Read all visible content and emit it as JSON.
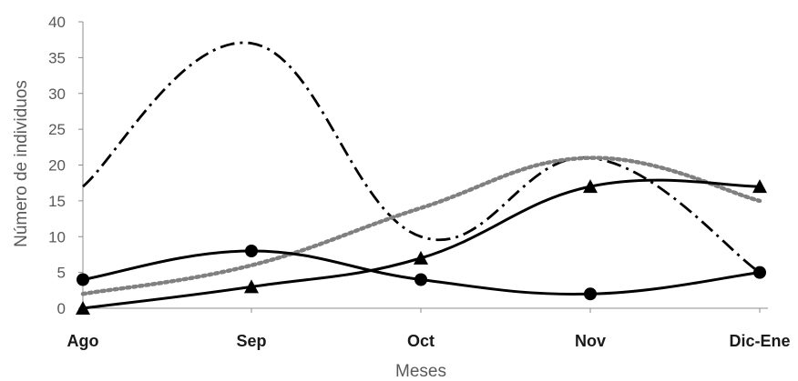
{
  "chart_data": {
    "type": "line",
    "xlabel": "Meses",
    "ylabel": "Número de individuos",
    "categories": [
      "Ago",
      "Sep",
      "Oct",
      "Nov",
      "Dic-Ene"
    ],
    "ylim": [
      0,
      40
    ],
    "yticks": [
      "0",
      "5",
      "10",
      "15",
      "20",
      "25",
      "30",
      "35",
      "40"
    ],
    "grid": false,
    "legend": "none",
    "series": [
      {
        "values": [
          17,
          37,
          10,
          21,
          5
        ],
        "style": "dash-dot",
        "color": "#000000",
        "marker": "none"
      },
      {
        "values": [
          2,
          6,
          14,
          21,
          15
        ],
        "style": "dotted",
        "color": "#808080",
        "marker": "none"
      },
      {
        "values": [
          4,
          8,
          4,
          2,
          5
        ],
        "style": "solid",
        "color": "#000000",
        "marker": "circle"
      },
      {
        "values": [
          0,
          3,
          7,
          17,
          17
        ],
        "style": "solid",
        "color": "#000000",
        "marker": "triangle"
      }
    ]
  }
}
